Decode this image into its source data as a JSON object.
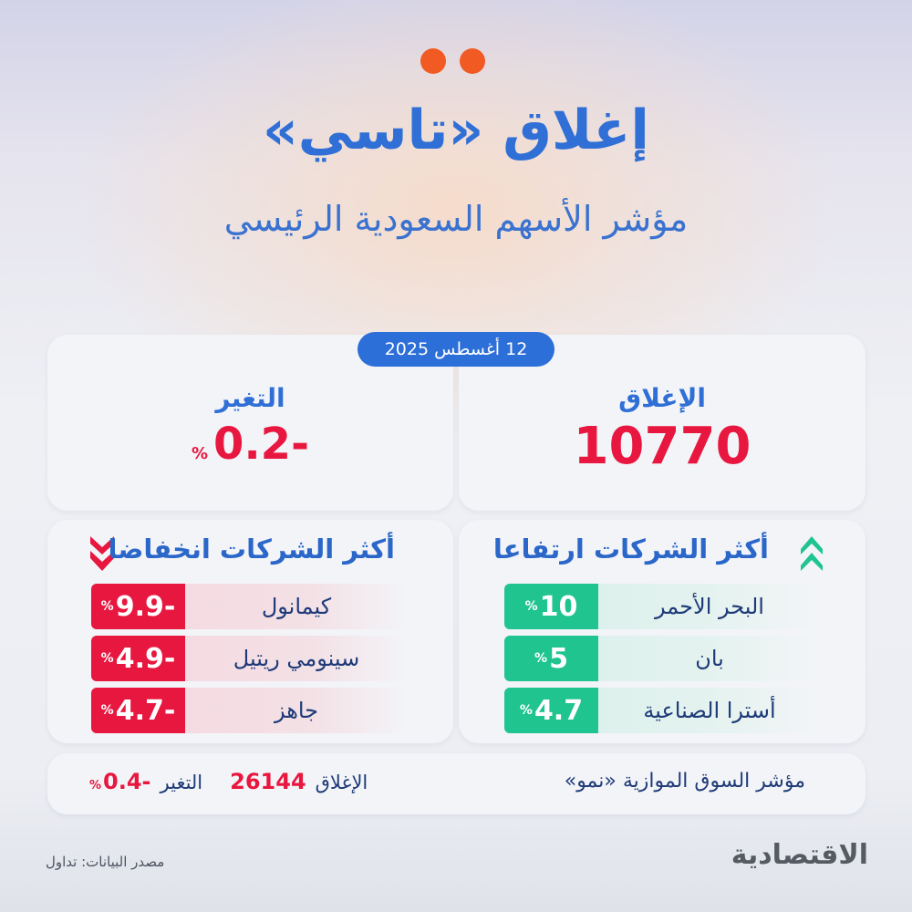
{
  "header": {
    "title": "إغلاق «تاسي»",
    "subtitle": "مؤشر الأسهم السعودية الرئيسي"
  },
  "date": "12 أغسطس 2025",
  "close": {
    "label": "الإغلاق",
    "value": "10770"
  },
  "change": {
    "label": "التغير",
    "value": "-0.2",
    "unit": "%"
  },
  "gainers": {
    "title": "أكثر الشركات ارتفاعا",
    "icon": "double-chevron-up-icon",
    "items": [
      {
        "name": "البحر الأحمر",
        "value": "10",
        "unit": "%"
      },
      {
        "name": "بان",
        "value": "5",
        "unit": "%"
      },
      {
        "name": "أسترا الصناعية",
        "value": "4.7",
        "unit": "%"
      }
    ]
  },
  "losers": {
    "title": "أكثر الشركات انخفاضا",
    "icon": "double-chevron-down-icon",
    "items": [
      {
        "name": "كيمانول",
        "value": "-9.9",
        "unit": "%"
      },
      {
        "name": "سينومي ريتيل",
        "value": "-4.9",
        "unit": "%"
      },
      {
        "name": "جاهز",
        "value": "-4.7",
        "unit": "%"
      }
    ]
  },
  "nomu": {
    "label": "مؤشر السوق الموازية «نمو»",
    "close_label": "الإغلاق",
    "close_value": "26144",
    "change_label": "التغير",
    "change_value": "-0.4",
    "unit": "%"
  },
  "footer": {
    "logo": "الاقتصادية",
    "source": "مصدر البيانات: تداول"
  },
  "colors": {
    "accent": "#2f6fd6",
    "negative": "#e8173f",
    "positive": "#1fc48f",
    "dots": "#f15a22"
  }
}
